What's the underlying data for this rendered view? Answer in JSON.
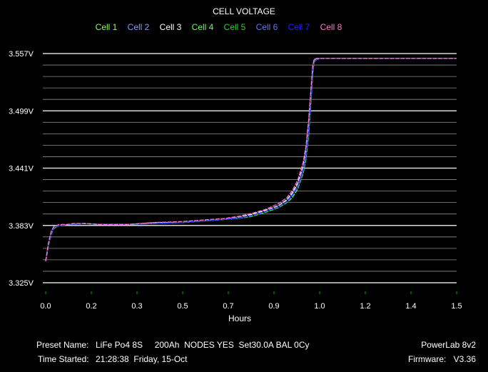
{
  "chart_data": {
    "type": "line",
    "title": "CELL VOLTAGE",
    "xlabel": "Hours",
    "ylabel": "",
    "xlim": [
      0.0,
      1.5
    ],
    "ylim": [
      3.325,
      3.557
    ],
    "grid": "horizontal",
    "legend_placement": "top-center",
    "x_tick_labels": [
      "0.0",
      "0.2",
      "0.3",
      "0.5",
      "0.7",
      "0.9",
      "1.0",
      "1.2",
      "1.4",
      "1.5"
    ],
    "y_tick_labels": [
      {
        "label": "3.557V",
        "value": 3.557
      },
      {
        "label": "3.499V",
        "value": 3.499
      },
      {
        "label": "3.441V",
        "value": 3.441
      },
      {
        "label": "3.383V",
        "value": 3.383
      },
      {
        "label": "3.325V",
        "value": 3.325
      }
    ],
    "x": [
      0.0,
      0.005,
      0.01,
      0.02,
      0.03,
      0.05,
      0.08,
      0.1,
      0.14,
      0.2,
      0.3,
      0.4,
      0.5,
      0.6,
      0.65,
      0.7,
      0.75,
      0.8,
      0.85,
      0.88,
      0.9,
      0.92,
      0.94,
      0.95,
      0.96,
      0.97,
      0.975,
      0.98,
      0.99,
      1.0,
      1.05,
      1.1,
      1.2,
      1.3,
      1.4,
      1.5
    ],
    "series": [
      {
        "name": "Cell 1",
        "color": "#88ff55",
        "values": [
          3.347,
          3.354,
          3.363,
          3.375,
          3.381,
          3.383,
          3.384,
          3.384,
          3.385,
          3.384,
          3.384,
          3.385,
          3.386,
          3.388,
          3.389,
          3.391,
          3.393,
          3.397,
          3.402,
          3.408,
          3.414,
          3.423,
          3.44,
          3.455,
          3.48,
          3.52,
          3.54,
          3.55,
          3.551,
          3.552,
          3.552,
          3.552,
          3.552,
          3.552,
          3.552,
          3.552
        ]
      },
      {
        "name": "Cell 2",
        "color": "#8899ff",
        "values": [
          3.347,
          3.355,
          3.364,
          3.376,
          3.381,
          3.383,
          3.384,
          3.384,
          3.385,
          3.384,
          3.384,
          3.385,
          3.386,
          3.388,
          3.389,
          3.391,
          3.394,
          3.398,
          3.403,
          3.409,
          3.415,
          3.425,
          3.442,
          3.458,
          3.484,
          3.523,
          3.542,
          3.55,
          3.551,
          3.552,
          3.552,
          3.552,
          3.552,
          3.552,
          3.552,
          3.552
        ]
      },
      {
        "name": "Cell 3",
        "color": "#ffffff",
        "values": [
          3.347,
          3.355,
          3.364,
          3.376,
          3.381,
          3.383,
          3.384,
          3.384,
          3.385,
          3.384,
          3.384,
          3.386,
          3.386,
          3.388,
          3.389,
          3.391,
          3.394,
          3.398,
          3.403,
          3.409,
          3.416,
          3.426,
          3.443,
          3.459,
          3.485,
          3.524,
          3.543,
          3.551,
          3.552,
          3.552,
          3.552,
          3.552,
          3.552,
          3.552,
          3.552,
          3.552
        ]
      },
      {
        "name": "Cell 4",
        "color": "#66ff66",
        "values": [
          3.347,
          3.354,
          3.362,
          3.374,
          3.38,
          3.383,
          3.384,
          3.384,
          3.385,
          3.384,
          3.384,
          3.385,
          3.386,
          3.388,
          3.389,
          3.39,
          3.392,
          3.396,
          3.401,
          3.406,
          3.411,
          3.42,
          3.436,
          3.45,
          3.474,
          3.515,
          3.537,
          3.549,
          3.551,
          3.552,
          3.552,
          3.552,
          3.552,
          3.552,
          3.552,
          3.552
        ]
      },
      {
        "name": "Cell 5",
        "color": "#33cc33",
        "values": [
          3.347,
          3.354,
          3.362,
          3.374,
          3.38,
          3.383,
          3.384,
          3.384,
          3.385,
          3.384,
          3.384,
          3.385,
          3.386,
          3.388,
          3.389,
          3.39,
          3.392,
          3.396,
          3.401,
          3.406,
          3.412,
          3.421,
          3.437,
          3.452,
          3.476,
          3.517,
          3.538,
          3.549,
          3.551,
          3.552,
          3.552,
          3.552,
          3.552,
          3.552,
          3.552,
          3.552
        ]
      },
      {
        "name": "Cell 6",
        "color": "#6677ee",
        "values": [
          3.347,
          3.355,
          3.363,
          3.375,
          3.381,
          3.383,
          3.384,
          3.384,
          3.385,
          3.384,
          3.384,
          3.385,
          3.386,
          3.388,
          3.389,
          3.391,
          3.393,
          3.397,
          3.402,
          3.408,
          3.414,
          3.424,
          3.441,
          3.457,
          3.482,
          3.521,
          3.541,
          3.55,
          3.551,
          3.552,
          3.552,
          3.552,
          3.552,
          3.552,
          3.552,
          3.552
        ]
      },
      {
        "name": "Cell 7",
        "color": "#2222ff",
        "values": [
          3.347,
          3.355,
          3.363,
          3.375,
          3.381,
          3.383,
          3.384,
          3.384,
          3.385,
          3.384,
          3.384,
          3.385,
          3.386,
          3.388,
          3.389,
          3.39,
          3.393,
          3.397,
          3.402,
          3.407,
          3.413,
          3.422,
          3.439,
          3.454,
          3.479,
          3.519,
          3.54,
          3.55,
          3.551,
          3.552,
          3.552,
          3.552,
          3.552,
          3.552,
          3.552,
          3.552
        ]
      },
      {
        "name": "Cell 8",
        "color": "#ff77cc",
        "values": [
          3.347,
          3.356,
          3.365,
          3.377,
          3.382,
          3.384,
          3.384,
          3.385,
          3.385,
          3.384,
          3.384,
          3.386,
          3.387,
          3.389,
          3.39,
          3.392,
          3.395,
          3.399,
          3.405,
          3.411,
          3.418,
          3.429,
          3.447,
          3.463,
          3.49,
          3.528,
          3.545,
          3.551,
          3.552,
          3.552,
          3.552,
          3.552,
          3.552,
          3.552,
          3.552,
          3.552
        ]
      }
    ]
  },
  "footer": {
    "preset_label": "Preset Name:",
    "preset_value": "LiFe Po4 8S     200Ah  NODES YES  Set30.0A BAL 0Cy",
    "time_label": "Time Started:",
    "time_value": "21:28:38  Friday, 15-Oct",
    "device": "PowerLab 8v2",
    "firmware_label": "Firmware:",
    "firmware_value": "V3.36"
  },
  "colors": {
    "background": "#000000",
    "grid": "#ffffff",
    "text": "#ffffff"
  }
}
